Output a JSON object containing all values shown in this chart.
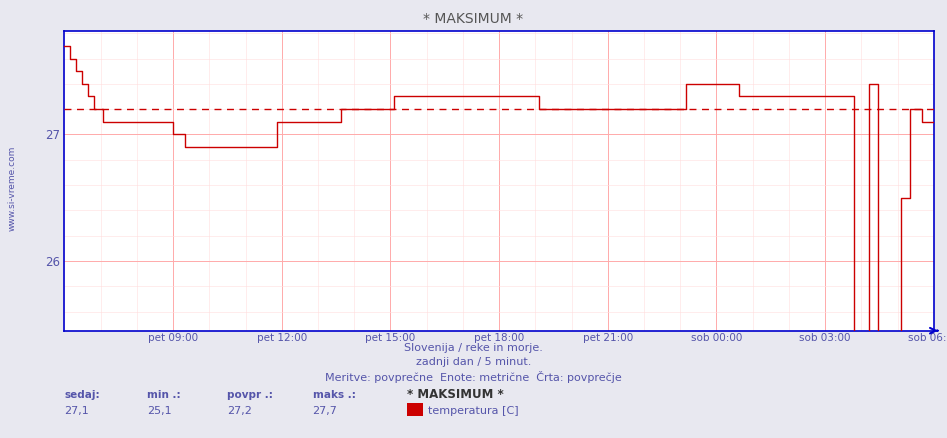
{
  "title": "* MAKSIMUM *",
  "subtitle1": "Slovenija / reke in morje.",
  "subtitle2": "zadnji dan / 5 minut.",
  "subtitle3": "Meritve: povprečne  Enote: metrične  Črta: povprečje",
  "side_text": "www.si-vreme.com",
  "xlabels": [
    "pet 09:00",
    "pet 12:00",
    "pet 15:00",
    "pet 18:00",
    "pet 21:00",
    "sob 00:00",
    "sob 03:00",
    "sob 06:00"
  ],
  "ylim_lo": 25.45,
  "ylim_hi": 27.82,
  "yticks": [
    26,
    27
  ],
  "avg_line": 27.2,
  "legend_sedaj_label": "sedaj:",
  "legend_min_label": "min .:",
  "legend_povpr_label": "povpr .:",
  "legend_maks_label": "maks .:",
  "legend_sedaj": "27,1",
  "legend_min": "25,1",
  "legend_povpr": "27,2",
  "legend_maks": "27,7",
  "legend_name": "* MAKSIMUM *",
  "legend_unit": "temperatura [C]",
  "bg_color": "#e8e8f0",
  "plot_bg": "#ffffff",
  "line_color": "#cc0000",
  "avg_color": "#cc0000",
  "grid_major_color": "#ffaaaa",
  "grid_minor_color": "#ffdddd",
  "axis_color": "#0000cc",
  "text_color": "#5555aa",
  "title_color": "#555555",
  "temperature_data": [
    27.7,
    27.7,
    27.6,
    27.6,
    27.5,
    27.5,
    27.4,
    27.4,
    27.3,
    27.3,
    27.2,
    27.2,
    27.2,
    27.1,
    27.1,
    27.1,
    27.1,
    27.1,
    27.1,
    27.1,
    27.1,
    27.1,
    27.1,
    27.1,
    27.1,
    27.1,
    27.1,
    27.1,
    27.1,
    27.1,
    27.1,
    27.1,
    27.1,
    27.1,
    27.1,
    27.1,
    27.1,
    27.0,
    27.0,
    27.0,
    27.0,
    26.9,
    26.9,
    26.9,
    26.9,
    26.9,
    26.9,
    26.9,
    26.9,
    26.9,
    26.9,
    26.9,
    26.9,
    26.9,
    26.9,
    26.9,
    26.9,
    26.9,
    26.9,
    26.9,
    26.9,
    26.9,
    26.9,
    26.9,
    26.9,
    26.9,
    26.9,
    26.9,
    26.9,
    26.9,
    26.9,
    26.9,
    27.1,
    27.1,
    27.1,
    27.1,
    27.1,
    27.1,
    27.1,
    27.1,
    27.1,
    27.1,
    27.1,
    27.1,
    27.1,
    27.1,
    27.1,
    27.1,
    27.1,
    27.1,
    27.1,
    27.1,
    27.1,
    27.1,
    27.2,
    27.2,
    27.2,
    27.2,
    27.2,
    27.2,
    27.2,
    27.2,
    27.2,
    27.2,
    27.2,
    27.2,
    27.2,
    27.2,
    27.2,
    27.2,
    27.2,
    27.2,
    27.3,
    27.3,
    27.3,
    27.3,
    27.3,
    27.3,
    27.3,
    27.3,
    27.3,
    27.3,
    27.3,
    27.3,
    27.3,
    27.3,
    27.3,
    27.3,
    27.3,
    27.3,
    27.3,
    27.3,
    27.3,
    27.3,
    27.3,
    27.3,
    27.3,
    27.3,
    27.3,
    27.3,
    27.3,
    27.3,
    27.3,
    27.3,
    27.3,
    27.3,
    27.3,
    27.3,
    27.3,
    27.3,
    27.3,
    27.3,
    27.3,
    27.3,
    27.3,
    27.3,
    27.3,
    27.3,
    27.3,
    27.3,
    27.3,
    27.2,
    27.2,
    27.2,
    27.2,
    27.2,
    27.2,
    27.2,
    27.2,
    27.2,
    27.2,
    27.2,
    27.2,
    27.2,
    27.2,
    27.2,
    27.2,
    27.2,
    27.2,
    27.2,
    27.2,
    27.2,
    27.2,
    27.2,
    27.2,
    27.2,
    27.2,
    27.2,
    27.2,
    27.2,
    27.2,
    27.2,
    27.2,
    27.2,
    27.2,
    27.2,
    27.2,
    27.2,
    27.2,
    27.2,
    27.2,
    27.2,
    27.2,
    27.2,
    27.2,
    27.2,
    27.2,
    27.2,
    27.2,
    27.2,
    27.2,
    27.4,
    27.4,
    27.4,
    27.4,
    27.4,
    27.4,
    27.4,
    27.4,
    27.4,
    27.4,
    27.4,
    27.4,
    27.4,
    27.4,
    27.4,
    27.4,
    27.4,
    27.4,
    27.3,
    27.3,
    27.3,
    27.3,
    27.3,
    27.3,
    27.3,
    27.3,
    27.3,
    27.3,
    27.3,
    27.3,
    27.3,
    27.3,
    27.3,
    27.3,
    27.3,
    27.3,
    27.3,
    27.3,
    27.3,
    27.3,
    27.3,
    27.3,
    27.3,
    27.3,
    27.3,
    27.3,
    27.3,
    27.3,
    27.3,
    27.3,
    27.3,
    27.3,
    27.3,
    27.3,
    27.3,
    27.3,
    27.3,
    25.2,
    25.2,
    25.2,
    25.2,
    25.2,
    27.4,
    27.4,
    27.4,
    25.3,
    25.3,
    25.3,
    25.3,
    25.3,
    25.3,
    25.3,
    25.3,
    26.5,
    26.5,
    26.5,
    27.2,
    27.2,
    27.2,
    27.2,
    27.1,
    27.1,
    27.1,
    27.1,
    27.1
  ]
}
